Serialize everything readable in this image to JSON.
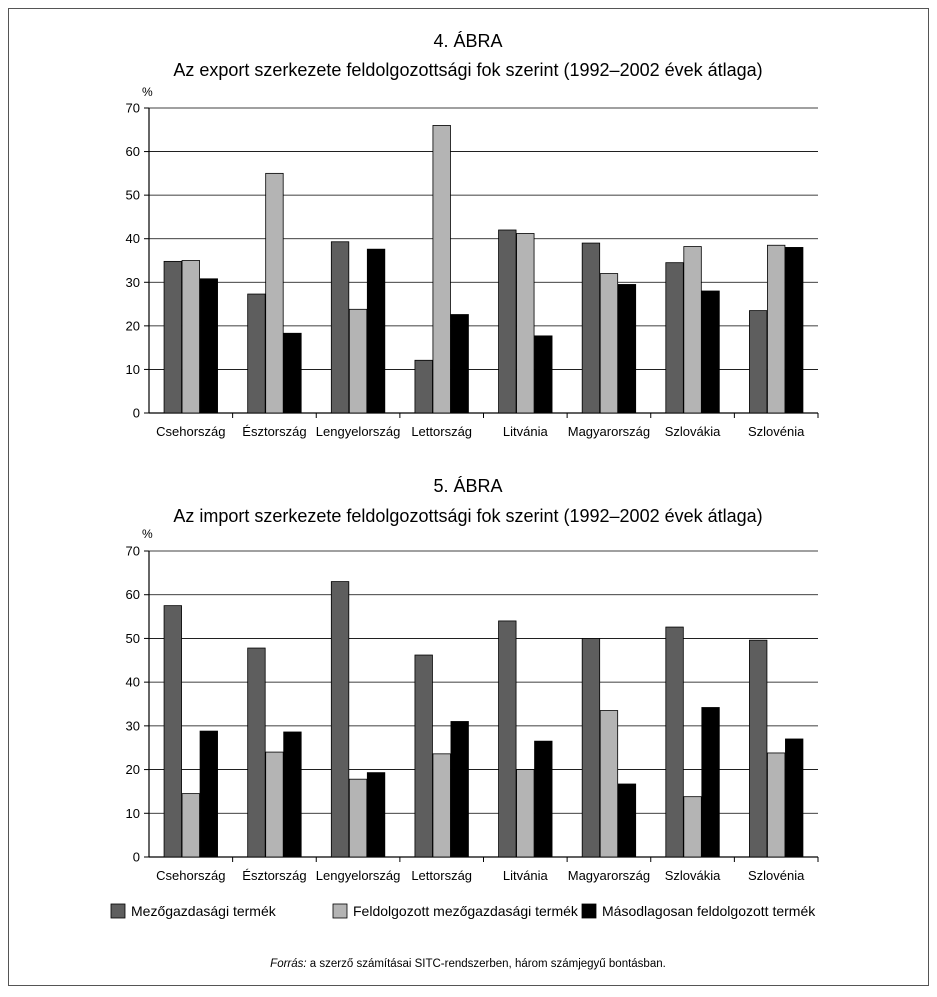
{
  "colors": {
    "series": [
      "#5e5e5e",
      "#b4b4b4",
      "#000000"
    ],
    "axis": "#000000",
    "grid": "#000000"
  },
  "legend": {
    "items": [
      {
        "label": "Mezőgazdasági termék"
      },
      {
        "label": "Feldolgozott mezőgazdasági termék"
      },
      {
        "label": "Másodlagosan feldolgozott termék"
      }
    ]
  },
  "source": {
    "prefix": "Forrás:",
    "text": " a szerző számításai SITC-rendszerben, három számjegyű bontásban."
  },
  "chart_data": [
    {
      "type": "bar",
      "figure_number": "4. ÁBRA",
      "title": "Az export szerkezete feldolgozottsági fok szerint (1992–2002 évek átlaga)",
      "ylabel": "%",
      "xlabel": "",
      "ylim": [
        0,
        70
      ],
      "yticks": [
        0,
        10,
        20,
        30,
        40,
        50,
        60,
        70
      ],
      "grid": true,
      "legend_position": "bottom",
      "categories": [
        "Csehország",
        "Észtország",
        "Lengyelország",
        "Lettország",
        "Litvánia",
        "Magyarország",
        "Szlovákia",
        "Szlovénia"
      ],
      "series": [
        {
          "name": "Mezőgazdasági termék",
          "values": [
            34.8,
            27.3,
            39.3,
            12.1,
            42.0,
            39.0,
            34.5,
            23.5
          ]
        },
        {
          "name": "Feldolgozott mezőgazdasági termék",
          "values": [
            35.0,
            55.0,
            23.8,
            66.0,
            41.2,
            32.0,
            38.2,
            38.5
          ]
        },
        {
          "name": "Másodlagosan feldolgozott termék",
          "values": [
            30.8,
            18.3,
            37.6,
            22.6,
            17.7,
            29.5,
            28.0,
            38.0
          ]
        }
      ]
    },
    {
      "type": "bar",
      "figure_number": "5. ÁBRA",
      "title": "Az import szerkezete feldolgozottsági fok szerint (1992–2002 évek átlaga)",
      "ylabel": "%",
      "xlabel": "",
      "ylim": [
        0,
        70
      ],
      "yticks": [
        0,
        10,
        20,
        30,
        40,
        50,
        60,
        70
      ],
      "grid": true,
      "legend_position": "bottom",
      "categories": [
        "Csehország",
        "Észtország",
        "Lengyelország",
        "Lettország",
        "Litvánia",
        "Magyarország",
        "Szlovákia",
        "Szlovénia"
      ],
      "series": [
        {
          "name": "Mezőgazdasági termék",
          "values": [
            57.5,
            47.8,
            63.0,
            46.2,
            54.0,
            50.0,
            52.6,
            49.6
          ]
        },
        {
          "name": "Feldolgozott mezőgazdasági termék",
          "values": [
            14.5,
            24.0,
            17.8,
            23.6,
            20.0,
            33.5,
            13.8,
            23.8
          ]
        },
        {
          "name": "Másodlagosan feldolgozott termék",
          "values": [
            28.8,
            28.6,
            19.3,
            31.0,
            26.5,
            16.7,
            34.2,
            27.0
          ]
        }
      ]
    }
  ]
}
